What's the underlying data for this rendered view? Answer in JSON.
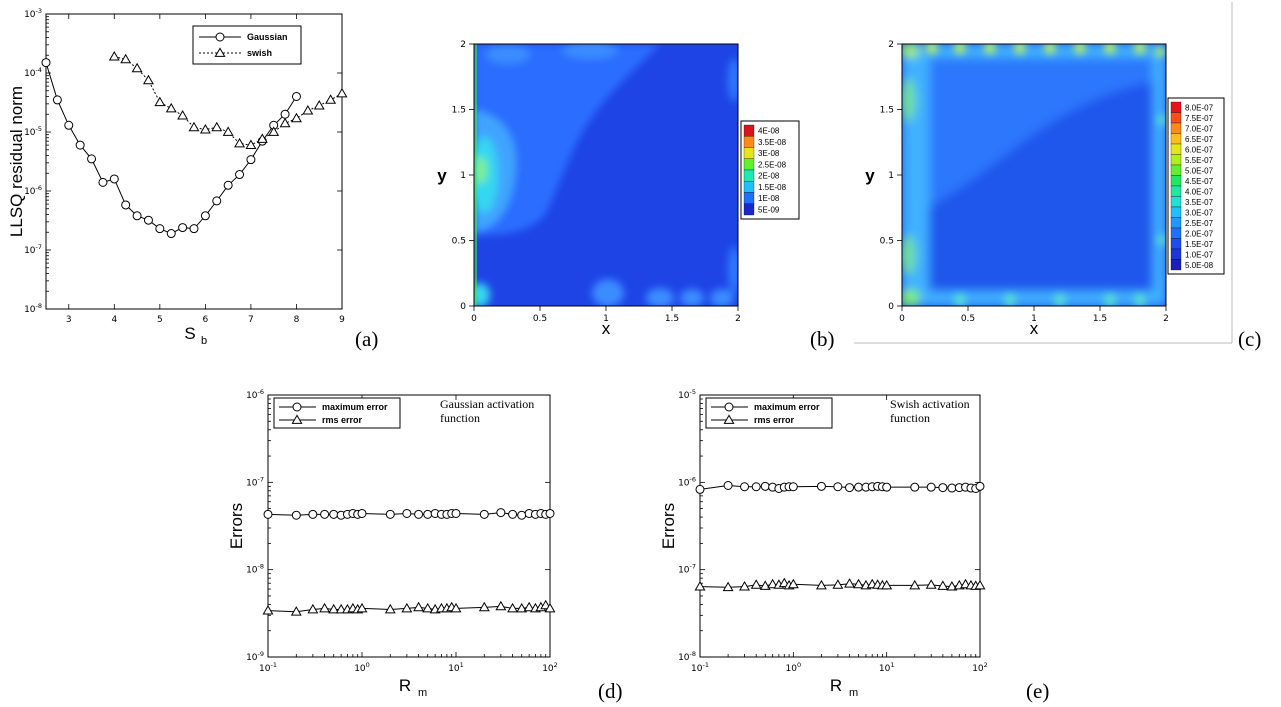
{
  "chart_data": [
    {
      "id": "a",
      "type": "line",
      "panel_label": "(a)",
      "xlabel": "S",
      "xlabel_sub": "b",
      "ylabel": "LLSQ residual norm",
      "xlim": [
        2.5,
        9
      ],
      "ylog": true,
      "ylim_exp": [
        -8,
        -3
      ],
      "xticks": [
        "3",
        "4",
        "5",
        "6",
        "7",
        "8",
        "9"
      ],
      "yticks": [
        "-8",
        "-7",
        "-6",
        "-5",
        "-4",
        "-3"
      ],
      "legend": [
        "Gaussian",
        "swish"
      ],
      "series": [
        {
          "name": "Gaussian",
          "marker": "circle",
          "x": [
            2.5,
            2.75,
            3.0,
            3.25,
            3.5,
            3.75,
            4.0,
            4.25,
            4.5,
            4.75,
            5.0,
            5.25,
            5.5,
            5.75,
            6.0,
            6.25,
            6.5,
            6.75,
            7.0,
            7.25,
            7.5,
            7.75,
            8.0
          ],
          "y": [
            0.00015,
            3.5e-05,
            1.3e-05,
            6e-06,
            3.5e-06,
            1.4e-06,
            1.6e-06,
            5.8e-07,
            3.8e-07,
            3.2e-07,
            2.3e-07,
            1.9e-07,
            2.4e-07,
            2.3e-07,
            3.8e-07,
            6.8e-07,
            1.25e-06,
            1.9e-06,
            3.4e-06,
            7e-06,
            1.3e-05,
            2e-05,
            4e-05
          ]
        },
        {
          "name": "swish",
          "marker": "triangle",
          "x": [
            4.0,
            4.25,
            4.5,
            4.75,
            5.0,
            5.25,
            5.5,
            5.75,
            6.0,
            6.25,
            6.5,
            6.75,
            7.0,
            7.25,
            7.5,
            7.75,
            8.0,
            8.25,
            8.5,
            8.75,
            9.0
          ],
          "y": [
            0.00019,
            0.00017,
            0.00012,
            7.5e-05,
            3.2e-05,
            2.5e-05,
            1.9e-05,
            1.2e-05,
            1.1e-05,
            1.2e-05,
            1e-05,
            6.4e-06,
            6e-06,
            7.6e-06,
            1e-05,
            1.4e-05,
            1.7e-05,
            2.3e-05,
            2.8e-05,
            3.5e-05,
            4.5e-05
          ]
        }
      ]
    },
    {
      "id": "b",
      "type": "heatmap",
      "panel_label": "(b)",
      "xlabel": "x",
      "ylabel": "y",
      "xlim": [
        0,
        2
      ],
      "ylim": [
        0,
        2
      ],
      "xticks": [
        "0",
        "0.5",
        "1",
        "1.5",
        "2"
      ],
      "yticks": [
        "0",
        "0.5",
        "1",
        "1.5",
        "2"
      ],
      "legend_levels": [
        "4E-08",
        "3.5E-08",
        "3E-08",
        "2.5E-08",
        "2E-08",
        "1.5E-08",
        "1E-08",
        "5E-09"
      ]
    },
    {
      "id": "c",
      "type": "heatmap",
      "panel_label": "(c)",
      "xlabel": "x",
      "ylabel": "y",
      "xlim": [
        0,
        2
      ],
      "ylim": [
        0,
        2
      ],
      "xticks": [
        "0",
        "0.5",
        "1",
        "1.5",
        "2"
      ],
      "yticks": [
        "0",
        "0.5",
        "1",
        "1.5",
        "2"
      ],
      "legend_levels": [
        "8.0E-07",
        "7.5E-07",
        "7.0E-07",
        "6.5E-07",
        "6.0E-07",
        "5.5E-07",
        "5.0E-07",
        "4.5E-07",
        "4.0E-07",
        "3.5E-07",
        "3.0E-07",
        "2.5E-07",
        "2.0E-07",
        "1.5E-07",
        "1.0E-07",
        "5.0E-08"
      ]
    },
    {
      "id": "d",
      "type": "line",
      "panel_label": "(d)",
      "xlabel": "R",
      "xlabel_sub": "m",
      "ylabel": "Errors",
      "annotation": [
        "Gaussian activation",
        "function"
      ],
      "xlog": true,
      "ylog": true,
      "xlim_exp": [
        -1,
        2
      ],
      "ylim_exp": [
        -9,
        -6
      ],
      "xticks": [
        "-1",
        "0",
        "1",
        "2"
      ],
      "yticks": [
        "-9",
        "-8",
        "-7",
        "-6"
      ],
      "legend": [
        "maximum error",
        "rms error"
      ],
      "x": [
        0.1,
        0.2,
        0.3,
        0.4,
        0.5,
        0.6,
        0.7,
        0.8,
        0.9,
        1,
        2,
        3,
        4,
        5,
        6,
        7,
        8,
        9,
        10,
        20,
        30,
        40,
        50,
        60,
        70,
        80,
        90,
        100
      ],
      "series": [
        {
          "name": "maximum error",
          "marker": "circle",
          "y": [
            4.3e-08,
            4.2e-08,
            4.3e-08,
            4.3e-08,
            4.3e-08,
            4.2e-08,
            4.3e-08,
            4.4e-08,
            4.3e-08,
            4.4e-08,
            4.3e-08,
            4.4e-08,
            4.3e-08,
            4.3e-08,
            4.4e-08,
            4.3e-08,
            4.3e-08,
            4.4e-08,
            4.4e-08,
            4.3e-08,
            4.5e-08,
            4.3e-08,
            4.2e-08,
            4.4e-08,
            4.3e-08,
            4.4e-08,
            4.3e-08,
            4.4e-08
          ]
        },
        {
          "name": "rms error",
          "marker": "triangle",
          "y": [
            3.4e-09,
            3.3e-09,
            3.5e-09,
            3.6e-09,
            3.5e-09,
            3.5e-09,
            3.5e-09,
            3.6e-09,
            3.5e-09,
            3.6e-09,
            3.5e-09,
            3.6e-09,
            3.7e-09,
            3.6e-09,
            3.5e-09,
            3.6e-09,
            3.6e-09,
            3.7e-09,
            3.6e-09,
            3.7e-09,
            3.8e-09,
            3.6e-09,
            3.6e-09,
            3.7e-09,
            3.6e-09,
            3.7e-09,
            3.9e-09,
            3.6e-09
          ]
        }
      ]
    },
    {
      "id": "e",
      "type": "line",
      "panel_label": "(e)",
      "xlabel": "R",
      "xlabel_sub": "m",
      "ylabel": "Errors",
      "annotation": [
        "Swish activation",
        "function"
      ],
      "xlog": true,
      "ylog": true,
      "xlim_exp": [
        -1,
        2
      ],
      "ylim_exp": [
        -8,
        -5
      ],
      "xticks": [
        "-1",
        "0",
        "1",
        "2"
      ],
      "yticks": [
        "-8",
        "-7",
        "-6",
        "-5"
      ],
      "legend": [
        "maximum error",
        "rms error"
      ],
      "x": [
        0.1,
        0.2,
        0.3,
        0.4,
        0.5,
        0.6,
        0.7,
        0.8,
        0.9,
        1,
        2,
        3,
        4,
        5,
        6,
        7,
        8,
        9,
        10,
        20,
        30,
        40,
        50,
        60,
        70,
        80,
        90,
        100
      ],
      "series": [
        {
          "name": "maximum error",
          "marker": "circle",
          "y": [
            8.3e-07,
            9.2e-07,
            8.9e-07,
            8.9e-07,
            9e-07,
            8.8e-07,
            8.5e-07,
            8.8e-07,
            8.9e-07,
            8.9e-07,
            9e-07,
            8.9e-07,
            8.7e-07,
            8.8e-07,
            8.8e-07,
            8.9e-07,
            9e-07,
            8.9e-07,
            8.8e-07,
            8.8e-07,
            8.8e-07,
            8.7e-07,
            8.6e-07,
            8.7e-07,
            8.8e-07,
            8.6e-07,
            8.5e-07,
            9e-07
          ]
        },
        {
          "name": "rms error",
          "marker": "triangle",
          "y": [
            6.4e-08,
            6.3e-08,
            6.4e-08,
            6.7e-08,
            6.5e-08,
            6.8e-08,
            6.7e-08,
            7e-08,
            6.6e-08,
            6.8e-08,
            6.6e-08,
            6.7e-08,
            6.9e-08,
            6.8e-08,
            6.6e-08,
            6.8e-08,
            6.7e-08,
            6.6e-08,
            6.6e-08,
            6.6e-08,
            6.7e-08,
            6.5e-08,
            6.4e-08,
            6.6e-08,
            6.8e-08,
            6.6e-08,
            6.5e-08,
            6.6e-08
          ]
        }
      ]
    }
  ]
}
